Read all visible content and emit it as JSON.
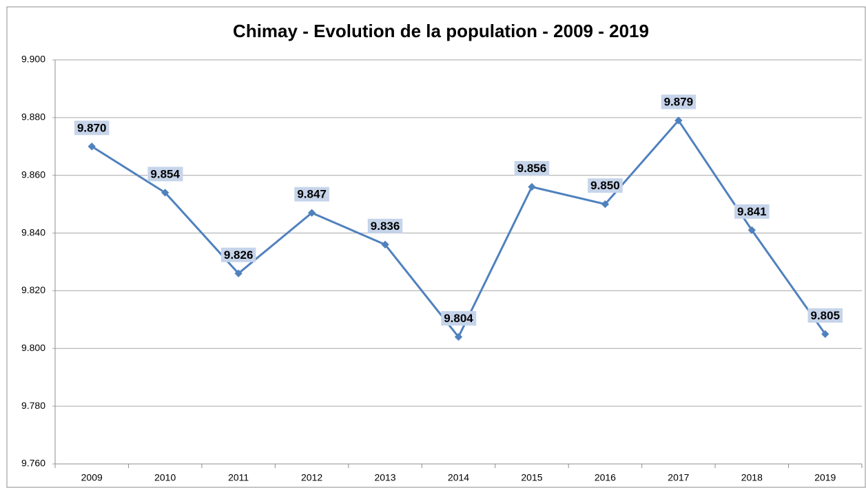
{
  "chart_data": {
    "type": "line",
    "title": "Chimay - Evolution de la population - 2009 - 2019",
    "categories": [
      "2009",
      "2010",
      "2011",
      "2012",
      "2013",
      "2014",
      "2015",
      "2016",
      "2017",
      "2018",
      "2019"
    ],
    "values": [
      9870,
      9854,
      9826,
      9847,
      9836,
      9804,
      9856,
      9850,
      9879,
      9841,
      9805
    ],
    "value_labels": [
      "9.870",
      "9.854",
      "9.826",
      "9.847",
      "9.836",
      "9.804",
      "9.856",
      "9.850",
      "9.879",
      "9.841",
      "9.805"
    ],
    "color": "#4f81bd",
    "ylim": [
      9760,
      9900
    ],
    "yticks": [
      {
        "value": 9760,
        "label": "9.760"
      },
      {
        "value": 9780,
        "label": "9.780"
      },
      {
        "value": 9800,
        "label": "9.800"
      },
      {
        "value": 9820,
        "label": "9.820"
      },
      {
        "value": 9840,
        "label": "9.840"
      },
      {
        "value": 9860,
        "label": "9.860"
      },
      {
        "value": 9880,
        "label": "9.880"
      },
      {
        "value": 9900,
        "label": "9.900"
      }
    ],
    "grid": true
  }
}
